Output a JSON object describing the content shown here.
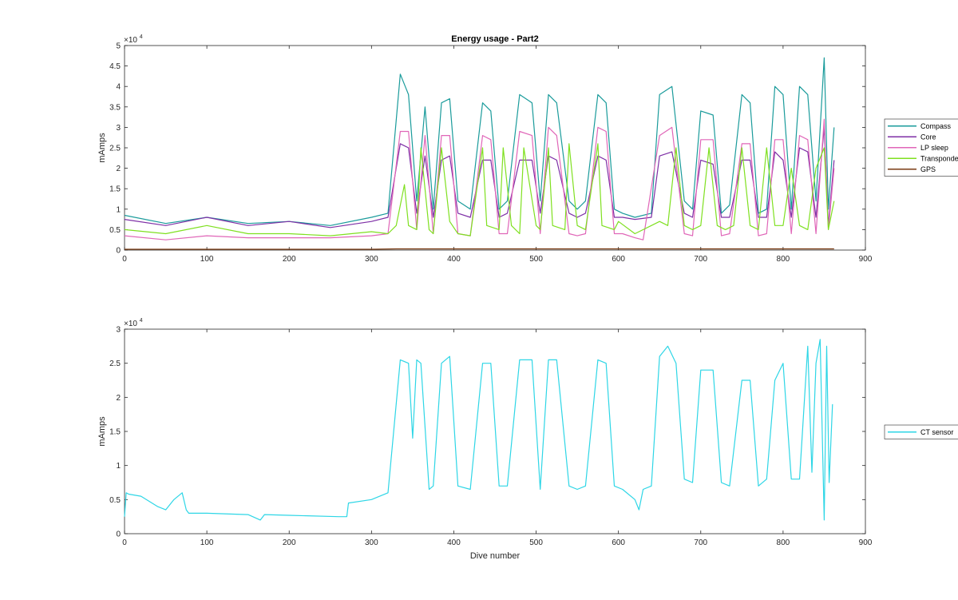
{
  "chart_data": [
    {
      "type": "line",
      "title": "Energy usage - Part2",
      "xlabel": "",
      "ylabel": "mAmps",
      "xlim": [
        0,
        900
      ],
      "ylim": [
        0,
        50000
      ],
      "xticks": [
        0,
        100,
        200,
        300,
        400,
        500,
        600,
        700,
        800,
        900
      ],
      "yticks": [
        0,
        5000,
        10000,
        15000,
        20000,
        25000,
        30000,
        35000,
        40000,
        45000,
        50000
      ],
      "ytick_labels": [
        "0",
        "0.5",
        "1",
        "1.5",
        "2",
        "2.5",
        "3",
        "3.5",
        "4",
        "4.5",
        "5"
      ],
      "xtick_labels": [
        "0",
        "100",
        "200",
        "300",
        "400",
        "500",
        "600",
        "700",
        "800",
        "900"
      ],
      "exponent_label": "×10",
      "exponent_power": "4",
      "legend_position": "outside-right",
      "series": [
        {
          "name": "Compass",
          "color": "#1a9b9b",
          "x": [
            0,
            50,
            100,
            150,
            200,
            250,
            300,
            320,
            335,
            345,
            355,
            365,
            375,
            385,
            395,
            405,
            420,
            435,
            445,
            455,
            465,
            480,
            495,
            505,
            515,
            525,
            540,
            550,
            560,
            575,
            585,
            595,
            605,
            620,
            640,
            650,
            665,
            680,
            690,
            700,
            715,
            725,
            735,
            750,
            760,
            770,
            780,
            790,
            800,
            810,
            820,
            830,
            840,
            850,
            855,
            862
          ],
          "values": [
            8500,
            6500,
            8000,
            6500,
            7000,
            6000,
            8000,
            9000,
            43000,
            38000,
            12000,
            35000,
            10000,
            36000,
            37000,
            12000,
            10000,
            36000,
            34000,
            10000,
            12000,
            38000,
            36000,
            12000,
            38000,
            36000,
            12000,
            10000,
            12000,
            38000,
            36000,
            10000,
            9000,
            8000,
            9000,
            38000,
            40000,
            12000,
            10000,
            34000,
            33000,
            9000,
            11000,
            38000,
            36000,
            9000,
            10000,
            40000,
            38000,
            10000,
            40000,
            38000,
            12000,
            47000,
            10000,
            30000
          ]
        },
        {
          "name": "Core",
          "color": "#7e2fa6",
          "x": [
            0,
            50,
            100,
            150,
            200,
            250,
            300,
            320,
            335,
            345,
            355,
            365,
            375,
            385,
            395,
            405,
            420,
            435,
            445,
            455,
            465,
            480,
            495,
            505,
            515,
            525,
            540,
            550,
            560,
            575,
            585,
            595,
            605,
            620,
            640,
            650,
            665,
            680,
            690,
            700,
            715,
            725,
            735,
            750,
            760,
            770,
            780,
            790,
            800,
            810,
            820,
            830,
            840,
            850,
            855,
            862
          ],
          "values": [
            7500,
            6000,
            8000,
            6000,
            7000,
            5500,
            7000,
            8000,
            26000,
            25000,
            9000,
            23000,
            8000,
            22000,
            23000,
            9000,
            8000,
            22000,
            22000,
            8000,
            9000,
            22000,
            22000,
            9000,
            23000,
            22000,
            9000,
            8000,
            9000,
            23000,
            22000,
            8000,
            8000,
            7500,
            8000,
            23000,
            24000,
            9000,
            8000,
            22000,
            21000,
            8000,
            8000,
            22000,
            22000,
            8000,
            8000,
            24000,
            22000,
            8000,
            25000,
            24000,
            8000,
            30000,
            6000,
            22000
          ]
        },
        {
          "name": "LP sleep",
          "color": "#e066b8",
          "x": [
            0,
            50,
            100,
            150,
            200,
            250,
            300,
            320,
            335,
            345,
            355,
            365,
            375,
            385,
            395,
            405,
            420,
            435,
            445,
            455,
            465,
            480,
            495,
            505,
            515,
            525,
            540,
            550,
            560,
            575,
            585,
            595,
            605,
            620,
            630,
            650,
            665,
            680,
            690,
            700,
            715,
            725,
            735,
            750,
            760,
            770,
            780,
            790,
            800,
            810,
            820,
            830,
            840,
            850,
            855,
            862
          ],
          "values": [
            3500,
            2500,
            3500,
            3000,
            3000,
            3000,
            3500,
            4000,
            29000,
            29000,
            5000,
            28000,
            4000,
            28000,
            28000,
            4000,
            3500,
            28000,
            27000,
            4000,
            4000,
            29000,
            28000,
            4000,
            30000,
            28000,
            4000,
            3500,
            4000,
            30000,
            29000,
            4000,
            4000,
            3000,
            2500,
            28000,
            30000,
            4000,
            3500,
            27000,
            27000,
            3500,
            4000,
            26000,
            26000,
            3500,
            4000,
            27000,
            27000,
            4000,
            28000,
            27000,
            4000,
            32000,
            5000,
            20000
          ]
        },
        {
          "name": "Transponder",
          "color": "#7fe020",
          "x": [
            0,
            50,
            100,
            150,
            200,
            250,
            300,
            320,
            330,
            340,
            345,
            355,
            360,
            370,
            375,
            385,
            395,
            405,
            420,
            435,
            440,
            455,
            460,
            470,
            480,
            485,
            500,
            505,
            515,
            520,
            535,
            540,
            550,
            560,
            575,
            580,
            595,
            600,
            620,
            640,
            650,
            660,
            670,
            680,
            690,
            700,
            710,
            720,
            730,
            740,
            750,
            760,
            770,
            780,
            790,
            800,
            810,
            820,
            830,
            840,
            850,
            855,
            862
          ],
          "values": [
            5000,
            4000,
            6000,
            4000,
            4000,
            3500,
            4500,
            4000,
            6000,
            16000,
            6000,
            5000,
            25000,
            5000,
            4000,
            25000,
            7000,
            4000,
            3500,
            25000,
            6000,
            5000,
            25000,
            6000,
            4000,
            25000,
            6000,
            5000,
            25000,
            6000,
            5000,
            26000,
            6000,
            5000,
            26000,
            6000,
            5000,
            7000,
            4000,
            6000,
            7000,
            6000,
            25000,
            6000,
            5000,
            6000,
            25000,
            6000,
            5000,
            6000,
            25000,
            6000,
            5000,
            25000,
            6000,
            6000,
            20000,
            6000,
            5000,
            20000,
            25000,
            5000,
            12000
          ]
        },
        {
          "name": "GPS",
          "color": "#7a3a12",
          "x": [
            0,
            100,
            200,
            300,
            330,
            400,
            500,
            600,
            700,
            800,
            862
          ],
          "values": [
            200,
            200,
            200,
            200,
            300,
            300,
            300,
            300,
            300,
            300,
            300
          ]
        }
      ]
    },
    {
      "type": "line",
      "title": "",
      "xlabel": "Dive number",
      "ylabel": "mAmps",
      "xlim": [
        0,
        900
      ],
      "ylim": [
        0,
        30000
      ],
      "xticks": [
        0,
        100,
        200,
        300,
        400,
        500,
        600,
        700,
        800,
        900
      ],
      "yticks": [
        0,
        5000,
        10000,
        15000,
        20000,
        25000,
        30000
      ],
      "ytick_labels": [
        "0",
        "0.5",
        "1",
        "1.5",
        "2",
        "2.5",
        "3"
      ],
      "xtick_labels": [
        "0",
        "100",
        "200",
        "300",
        "400",
        "500",
        "600",
        "700",
        "800",
        "900"
      ],
      "exponent_label": "×10",
      "exponent_power": "4",
      "legend_position": "outside-right",
      "series": [
        {
          "name": "CT sensor",
          "color": "#2ed6e6",
          "x": [
            0,
            2,
            5,
            20,
            40,
            50,
            60,
            70,
            75,
            78,
            100,
            150,
            165,
            170,
            200,
            260,
            270,
            272,
            300,
            320,
            335,
            345,
            350,
            355,
            360,
            370,
            375,
            385,
            395,
            405,
            420,
            435,
            445,
            455,
            465,
            480,
            495,
            505,
            515,
            525,
            540,
            550,
            560,
            575,
            585,
            595,
            605,
            620,
            625,
            630,
            640,
            650,
            660,
            670,
            680,
            690,
            700,
            715,
            725,
            735,
            750,
            760,
            770,
            780,
            790,
            800,
            810,
            820,
            830,
            835,
            840,
            845,
            850,
            853,
            856,
            860
          ],
          "values": [
            2500,
            6000,
            5800,
            5500,
            4000,
            3500,
            5000,
            6000,
            3500,
            3000,
            3000,
            2800,
            2000,
            2800,
            2700,
            2500,
            2500,
            4500,
            5000,
            6000,
            25500,
            25000,
            14000,
            25500,
            25000,
            6500,
            7000,
            25000,
            26000,
            7000,
            6500,
            25000,
            25000,
            7000,
            7000,
            25500,
            25500,
            6500,
            25500,
            25500,
            7000,
            6500,
            7000,
            25500,
            25000,
            7000,
            6500,
            5000,
            3500,
            6500,
            7000,
            26000,
            27500,
            25000,
            8000,
            7500,
            24000,
            24000,
            7500,
            7000,
            22500,
            22500,
            7000,
            8000,
            22500,
            25000,
            8000,
            8000,
            27500,
            9000,
            25000,
            28500,
            2000,
            27500,
            7500,
            19000
          ]
        }
      ]
    }
  ]
}
